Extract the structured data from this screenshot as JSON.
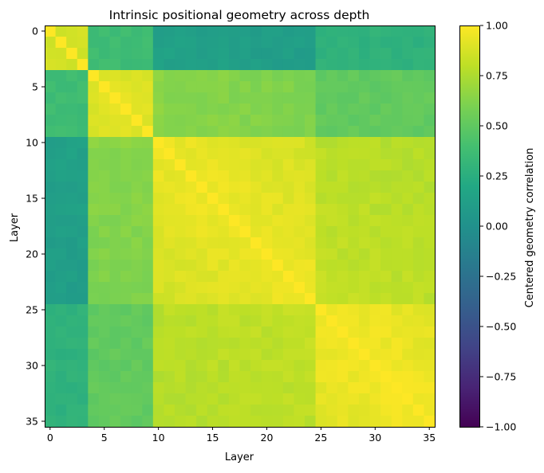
{
  "chart_data": {
    "type": "heatmap",
    "title": "Intrinsic positional geometry across depth",
    "xlabel": "Layer",
    "ylabel": "Layer",
    "colorbar_label": "Centered geometry correlation",
    "colormap": "viridis",
    "vmin": -1.0,
    "vmax": 1.0,
    "n_layers": 36,
    "x_ticks": [
      0,
      5,
      10,
      15,
      20,
      25,
      30,
      35
    ],
    "x_tick_labels": [
      "0",
      "5",
      "10",
      "15",
      "20",
      "25",
      "30",
      "35"
    ],
    "y_ticks": [
      0,
      5,
      10,
      15,
      20,
      25,
      30,
      35
    ],
    "y_tick_labels": [
      "0",
      "5",
      "10",
      "15",
      "20",
      "25",
      "30",
      "35"
    ],
    "colorbar_ticks": [
      1.0,
      0.75,
      0.5,
      0.25,
      0.0,
      -0.25,
      -0.5,
      -0.75,
      -1.0
    ],
    "colorbar_tick_labels": [
      "1.00",
      "0.75",
      "0.50",
      "0.25",
      "0.00",
      "−0.25",
      "−0.50",
      "−0.75",
      "−1.00"
    ],
    "approx_block_structure": {
      "note": "values approximated from colours",
      "blocks": [
        {
          "rows": [
            0,
            3
          ],
          "cols": [
            0,
            3
          ],
          "value": 0.88
        },
        {
          "rows": [
            4,
            9
          ],
          "cols": [
            4,
            9
          ],
          "value": 0.92
        },
        {
          "rows": [
            10,
            24
          ],
          "cols": [
            10,
            24
          ],
          "value": 0.95
        },
        {
          "rows": [
            25,
            35
          ],
          "cols": [
            25,
            35
          ],
          "value": 0.97
        }
      ],
      "cross_block_values": [
        {
          "a": [
            0,
            3
          ],
          "b": [
            4,
            9
          ],
          "value": 0.38
        },
        {
          "a": [
            0,
            3
          ],
          "b": [
            10,
            24
          ],
          "value": 0.15
        },
        {
          "a": [
            0,
            3
          ],
          "b": [
            25,
            35
          ],
          "value": 0.32
        },
        {
          "a": [
            4,
            9
          ],
          "b": [
            10,
            24
          ],
          "value": 0.65
        },
        {
          "a": [
            4,
            9
          ],
          "b": [
            25,
            35
          ],
          "value": 0.55
        },
        {
          "a": [
            10,
            24
          ],
          "b": [
            25,
            35
          ],
          "value": 0.82
        }
      ]
    }
  }
}
